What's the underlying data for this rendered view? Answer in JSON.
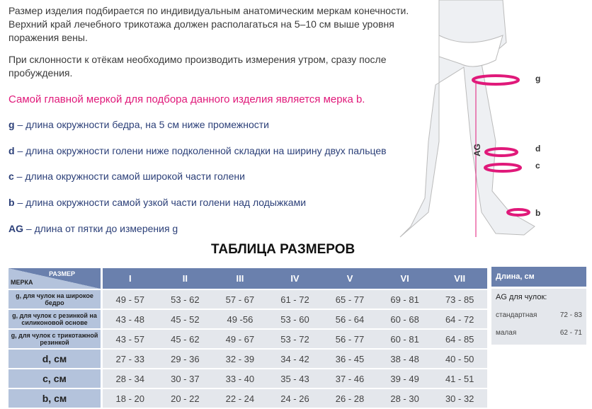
{
  "intro": [
    "Размер изделия подбирается по индивидуальным анатомическим меркам конечности. Верхний край лечебного трикотажа должен располагаться на 5–10 см выше уровня поражения вены.",
    "При склонности к отёкам необходимо производить измерения утром, сразу после пробуждения."
  ],
  "highlight": "Самой главной меркой для подбора данного изделия является мерка b.",
  "measures": [
    {
      "key": "g",
      "text": " – длина окружности бедра, на 5 см ниже промежности"
    },
    {
      "key": "d",
      "text": " – длина окружности голени ниже подколенной складки на ширину двух пальцев"
    },
    {
      "key": "c",
      "text": " – длина окружности самой широкой части голени"
    },
    {
      "key": "b",
      "text": " – длина окружности самой узкой части голени над лодыжками"
    },
    {
      "key": "AG",
      "text": " – длина от пятки до измерения g"
    }
  ],
  "figure": {
    "labels": [
      "g",
      "d",
      "c",
      "b",
      "AG"
    ],
    "accent": "#e0197a"
  },
  "table_title": "ТАБЛИЦА РАЗМЕРОВ",
  "table": {
    "corner_top": "РАЗМЕР",
    "corner_bottom": "МЕРКА",
    "sizes": [
      "I",
      "II",
      "III",
      "IV",
      "V",
      "VI",
      "VII"
    ],
    "rows": [
      {
        "label": "g, для чулок на широкое бедро",
        "values": [
          "49 - 57",
          "53 - 62",
          "57 - 67",
          "61 - 72",
          "65 - 77",
          "69 - 81",
          "73 - 85"
        ]
      },
      {
        "label": "g, для чулок с  резинкой на силиконовой основе",
        "values": [
          "43 - 48",
          "45 - 52",
          "49 -56",
          "53 - 60",
          "56 - 64",
          "60 - 68",
          "64 - 72"
        ]
      },
      {
        "label": "g, для чулок с трикотажной резинкой",
        "values": [
          "43 - 57",
          "45 - 62",
          "49 - 67",
          "53 - 72",
          "56 - 77",
          "60 - 81",
          "64 - 85"
        ]
      },
      {
        "label": "d, см",
        "values": [
          "27 - 33",
          "29 - 36",
          "32 - 39",
          "34 - 42",
          "36 - 45",
          "38 - 48",
          "40 - 50"
        ]
      },
      {
        "label": "c, см",
        "values": [
          "28 - 34",
          "30 - 37",
          "33 - 40",
          "35 - 43",
          "37 - 46",
          "39 - 49",
          "41 - 51"
        ]
      },
      {
        "label": "b, см",
        "values": [
          "18 - 20",
          "20 - 22",
          "22 - 24",
          "24 - 26",
          "26 - 28",
          "28 - 30",
          "30 - 32"
        ]
      }
    ]
  },
  "length": {
    "header": "Длина, см",
    "subtitle": "AG для чулок:",
    "rows": [
      {
        "label": "стандартная",
        "value": "72 - 83"
      },
      {
        "label": "малая",
        "value": "62 - 71"
      }
    ]
  }
}
